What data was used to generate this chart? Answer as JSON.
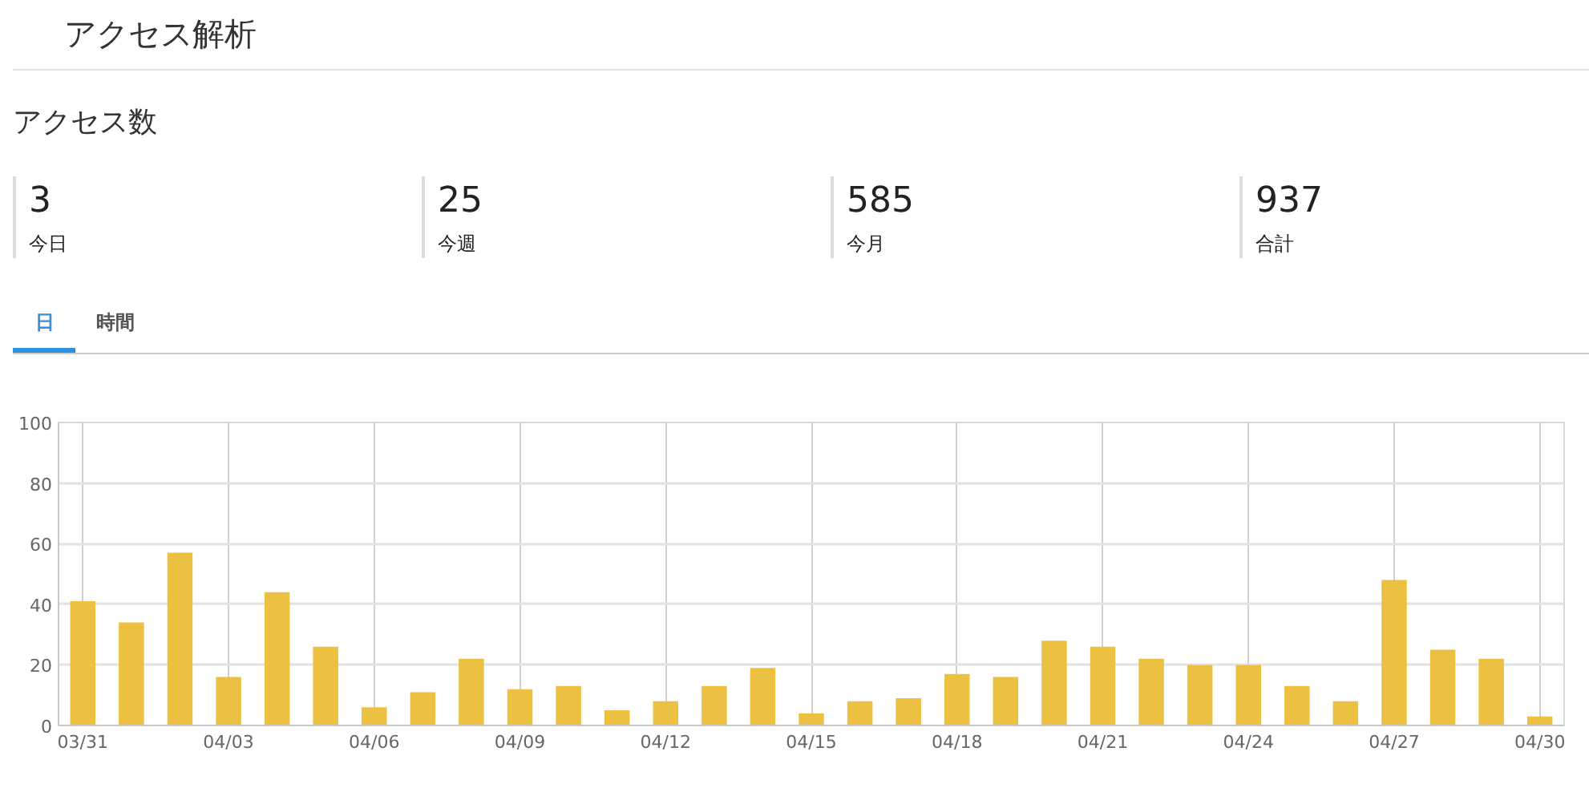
{
  "chart_data": {
    "type": "bar",
    "title": "アクセス解析",
    "subtitle": "アクセス数",
    "annotations": [
      "3",
      "今日",
      "25",
      "今週",
      "585",
      "今月",
      "937",
      "合計",
      "日",
      "時間"
    ],
    "categories": [
      "03/31",
      null,
      null,
      "04/03",
      null,
      null,
      "04/06",
      null,
      null,
      "04/09",
      null,
      null,
      "04/12",
      null,
      null,
      "04/15",
      null,
      null,
      "04/18",
      null,
      null,
      "04/21",
      null,
      null,
      "04/24",
      null,
      null,
      "04/27",
      null,
      null,
      "04/30"
    ],
    "values": [
      41,
      34,
      57,
      16,
      44,
      26,
      6,
      11,
      22,
      12,
      13,
      5,
      8,
      13,
      19,
      4,
      8,
      9,
      17,
      16,
      28,
      26,
      22,
      20,
      20,
      13,
      8,
      48,
      25,
      22,
      3
    ],
    "color": "#ecc040",
    "ylim": [
      0,
      100
    ],
    "yticks": [
      0,
      20,
      40,
      60,
      80,
      100
    ],
    "grid": true
  }
}
